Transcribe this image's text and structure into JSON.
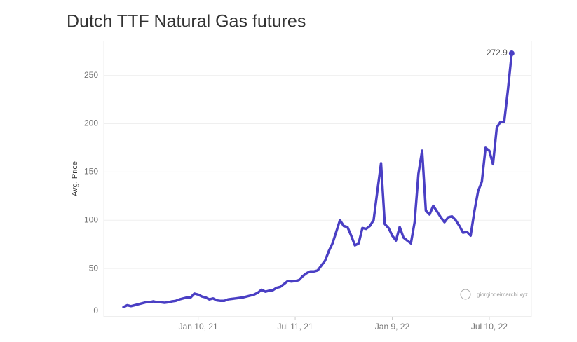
{
  "chart_data": {
    "type": "line",
    "title": "Dutch TTF Natural Gas futures",
    "y_label": "Avg. Price",
    "watermark": "giorgiodeimarchi.xyz",
    "x": [
      "2020-08-23",
      "2020-08-30",
      "2020-09-06",
      "2020-09-13",
      "2020-09-20",
      "2020-09-27",
      "2020-10-04",
      "2020-10-11",
      "2020-10-18",
      "2020-10-25",
      "2020-11-01",
      "2020-11-08",
      "2020-11-15",
      "2020-11-22",
      "2020-11-29",
      "2020-12-06",
      "2020-12-13",
      "2020-12-20",
      "2020-12-27",
      "2021-01-03",
      "2021-01-10",
      "2021-01-17",
      "2021-01-24",
      "2021-01-31",
      "2021-02-07",
      "2021-02-14",
      "2021-02-21",
      "2021-02-28",
      "2021-03-07",
      "2021-03-14",
      "2021-03-21",
      "2021-03-28",
      "2021-04-04",
      "2021-04-11",
      "2021-04-18",
      "2021-04-25",
      "2021-05-02",
      "2021-05-09",
      "2021-05-16",
      "2021-05-23",
      "2021-05-30",
      "2021-06-06",
      "2021-06-13",
      "2021-06-20",
      "2021-06-27",
      "2021-07-04",
      "2021-07-11",
      "2021-07-18",
      "2021-07-25",
      "2021-08-01",
      "2021-08-08",
      "2021-08-15",
      "2021-08-22",
      "2021-08-29",
      "2021-09-05",
      "2021-09-12",
      "2021-09-19",
      "2021-09-26",
      "2021-10-03",
      "2021-10-10",
      "2021-10-17",
      "2021-10-24",
      "2021-10-31",
      "2021-11-07",
      "2021-11-14",
      "2021-11-21",
      "2021-11-28",
      "2021-12-05",
      "2021-12-12",
      "2021-12-19",
      "2021-12-26",
      "2022-01-02",
      "2022-01-09",
      "2022-01-16",
      "2022-01-23",
      "2022-01-30",
      "2022-02-06",
      "2022-02-13",
      "2022-02-20",
      "2022-02-27",
      "2022-03-06",
      "2022-03-13",
      "2022-03-20",
      "2022-03-27",
      "2022-04-03",
      "2022-04-10",
      "2022-04-17",
      "2022-04-24",
      "2022-05-01",
      "2022-05-08",
      "2022-05-15",
      "2022-05-22",
      "2022-05-29",
      "2022-06-05",
      "2022-06-12",
      "2022-06-19",
      "2022-06-26",
      "2022-07-03",
      "2022-07-10",
      "2022-07-17",
      "2022-07-24",
      "2022-07-31",
      "2022-08-07",
      "2022-08-14",
      "2022-08-21"
    ],
    "series": [
      {
        "name": "Avg. Price",
        "color": "#4a3fc4",
        "values": [
          10,
          12,
          11,
          12,
          13,
          14,
          15,
          15,
          16,
          15,
          15,
          14.5,
          15,
          16,
          16.5,
          18,
          19,
          20,
          20,
          24,
          23,
          21,
          20,
          18,
          19,
          17,
          16.5,
          16.5,
          18,
          18.5,
          19,
          19.5,
          20,
          21,
          22,
          23,
          25,
          28,
          26,
          27,
          27.5,
          30,
          31,
          34,
          37,
          36.5,
          37,
          38,
          42,
          45,
          47,
          47,
          48,
          53,
          58,
          68,
          76,
          88,
          100,
          94,
          93,
          84,
          74,
          76,
          92,
          91,
          94,
          100,
          130,
          159,
          96,
          92,
          84,
          79,
          93,
          82,
          79,
          76,
          98,
          148,
          172,
          110,
          106,
          115,
          109,
          103,
          98,
          103,
          104,
          100,
          94,
          87,
          88,
          84,
          109,
          130,
          140,
          175,
          172,
          158,
          196,
          202,
          202,
          235,
          272.9
        ]
      }
    ],
    "xlim": [
      "2020-07-17",
      "2022-09-27"
    ],
    "xticks": [
      {
        "value": "2021-01-10",
        "label": "Jan 10, 21"
      },
      {
        "value": "2021-07-11",
        "label": "Jul 11, 21"
      },
      {
        "value": "2022-01-09",
        "label": "Jan 9, 22"
      },
      {
        "value": "2022-07-10",
        "label": "Jul 10, 22"
      }
    ],
    "ylim": [
      0,
      286
    ],
    "yticks": [
      0,
      50,
      100,
      150,
      200,
      250
    ],
    "grid": true
  }
}
